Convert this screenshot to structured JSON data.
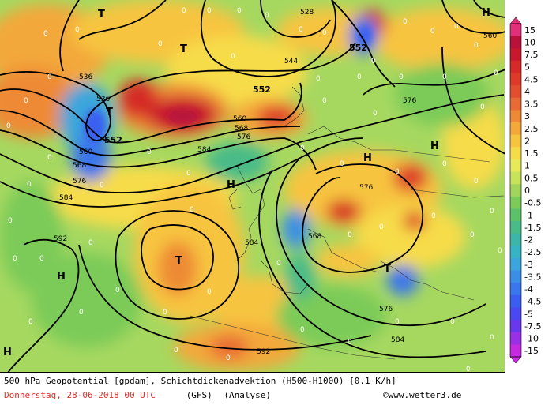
{
  "caption": {
    "line1": "500 hPa Geopotential [gpdam], Schichtdickenadvektion (H500-H1000) [0.1 K/h]",
    "date": "Donnerstag, 28-06-2018  00 UTC",
    "model": "(GFS)",
    "run": "(Analyse)",
    "copyright": "©www.wetter3.de"
  },
  "scale": {
    "labels": [
      "15",
      "10",
      "7.5",
      "5",
      "4.5",
      "4",
      "3.5",
      "3",
      "2.5",
      "2",
      "1.5",
      "1",
      "0.5",
      "0",
      "-0.5",
      "-1",
      "-1.5",
      "-2",
      "-2.5",
      "-3",
      "-3.5",
      "-4",
      "-4.5",
      "-5",
      "-7.5",
      "-10",
      "-15"
    ],
    "colors": [
      "#e0307a",
      "#b8123c",
      "#c8182e",
      "#d62a28",
      "#de3a2a",
      "#e24f30",
      "#e86a34",
      "#ee8a36",
      "#f3a83a",
      "#f7c440",
      "#f7dc4a",
      "#e7ea58",
      "#c8e25a",
      "#a2d65a",
      "#7ccb58",
      "#5cc26a",
      "#48bb88",
      "#3cb6a6",
      "#36b4c4",
      "#3aa6dc",
      "#3a8ee6",
      "#3a76ec",
      "#3a5ef0",
      "#4a48f0",
      "#6a38ec",
      "#9a30e6",
      "#c42ae0"
    ]
  },
  "map": {
    "contour_labels": [
      "528",
      "536",
      "536",
      "544",
      "552",
      "552",
      "552",
      "560",
      "560",
      "568",
      "568",
      "576",
      "576",
      "576",
      "576",
      "584",
      "584",
      "584",
      "592",
      "592",
      "560",
      "568",
      "576",
      "584"
    ],
    "symbols": [
      "T",
      "T",
      "T",
      "T",
      "T",
      "H",
      "H",
      "H",
      "H",
      "H",
      "H"
    ]
  }
}
